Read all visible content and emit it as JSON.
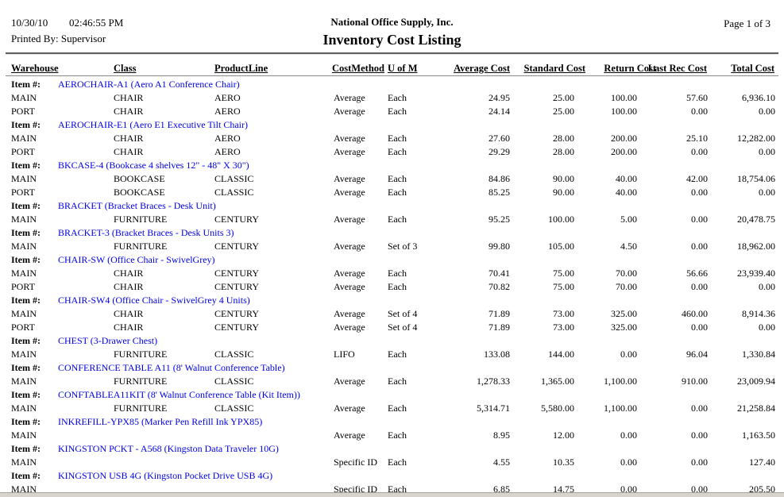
{
  "report": {
    "date": "10/30/10",
    "time": "02:46:55 PM",
    "printed_by": "Printed By: Supervisor",
    "company": "National Office Supply, Inc.",
    "title": "Inventory Cost Listing",
    "page_label": "Page 1 of 3"
  },
  "colors": {
    "item_link_blue": "#0000e6",
    "text": "#000000",
    "page_edge_gray": "#d8d4cc"
  },
  "table": {
    "item_label": "Item #:",
    "columns": {
      "warehouse": "Warehouse",
      "class": "Class",
      "product_line": "ProductLine",
      "cost_method": "CostMethod",
      "uom": "U of M",
      "average_cost": "Average Cost",
      "standard_cost": "Standard Cost",
      "return_cost": "Return Cost",
      "last_rec_cost": "Last Rec Cost",
      "total_cost": "Total Cost"
    },
    "items": [
      {
        "code": "AEROCHAIR-A1 (Aero A1 Conference Chair)",
        "rows": [
          {
            "warehouse": "MAIN",
            "class": "CHAIR",
            "product_line": "AERO",
            "cost_method": "Average",
            "uom": "Each",
            "average_cost": "24.95",
            "standard_cost": "25.00",
            "return_cost": "100.00",
            "last_rec_cost": "57.60",
            "total_cost": "6,936.10"
          },
          {
            "warehouse": "PORT",
            "class": "CHAIR",
            "product_line": "AERO",
            "cost_method": "Average",
            "uom": "Each",
            "average_cost": "24.14",
            "standard_cost": "25.00",
            "return_cost": "100.00",
            "last_rec_cost": "0.00",
            "total_cost": "0.00"
          }
        ]
      },
      {
        "code": "AEROCHAIR-E1 (Aero E1 Executive Tilt Chair)",
        "rows": [
          {
            "warehouse": "MAIN",
            "class": "CHAIR",
            "product_line": "AERO",
            "cost_method": "Average",
            "uom": "Each",
            "average_cost": "27.60",
            "standard_cost": "28.00",
            "return_cost": "200.00",
            "last_rec_cost": "25.10",
            "total_cost": "12,282.00"
          },
          {
            "warehouse": "PORT",
            "class": "CHAIR",
            "product_line": "AERO",
            "cost_method": "Average",
            "uom": "Each",
            "average_cost": "29.29",
            "standard_cost": "28.00",
            "return_cost": "200.00",
            "last_rec_cost": "0.00",
            "total_cost": "0.00"
          }
        ]
      },
      {
        "code": "BKCASE-4 (Bookcase 4 shelves 12\" - 48\" X 30\")",
        "rows": [
          {
            "warehouse": "MAIN",
            "class": "BOOKCASE",
            "product_line": "CLASSIC",
            "cost_method": "Average",
            "uom": "Each",
            "average_cost": "84.86",
            "standard_cost": "90.00",
            "return_cost": "40.00",
            "last_rec_cost": "42.00",
            "total_cost": "18,754.06"
          },
          {
            "warehouse": "PORT",
            "class": "BOOKCASE",
            "product_line": "CLASSIC",
            "cost_method": "Average",
            "uom": "Each",
            "average_cost": "85.25",
            "standard_cost": "90.00",
            "return_cost": "40.00",
            "last_rec_cost": "0.00",
            "total_cost": "0.00"
          }
        ]
      },
      {
        "code": "BRACKET (Bracket Braces - Desk Unit)",
        "rows": [
          {
            "warehouse": "MAIN",
            "class": "FURNITURE",
            "product_line": "CENTURY",
            "cost_method": "Average",
            "uom": "Each",
            "average_cost": "95.25",
            "standard_cost": "100.00",
            "return_cost": "5.00",
            "last_rec_cost": "0.00",
            "total_cost": "20,478.75"
          }
        ]
      },
      {
        "code": "BRACKET-3 (Bracket Braces - Desk Units 3)",
        "rows": [
          {
            "warehouse": "MAIN",
            "class": "FURNITURE",
            "product_line": "CENTURY",
            "cost_method": "Average",
            "uom": "Set of 3",
            "average_cost": "99.80",
            "standard_cost": "105.00",
            "return_cost": "4.50",
            "last_rec_cost": "0.00",
            "total_cost": "18,962.00"
          }
        ]
      },
      {
        "code": "CHAIR-SW (Office Chair - SwivelGrey)",
        "rows": [
          {
            "warehouse": "MAIN",
            "class": "CHAIR",
            "product_line": "CENTURY",
            "cost_method": "Average",
            "uom": "Each",
            "average_cost": "70.41",
            "standard_cost": "75.00",
            "return_cost": "70.00",
            "last_rec_cost": "56.66",
            "total_cost": "23,939.40"
          },
          {
            "warehouse": "PORT",
            "class": "CHAIR",
            "product_line": "CENTURY",
            "cost_method": "Average",
            "uom": "Each",
            "average_cost": "70.82",
            "standard_cost": "75.00",
            "return_cost": "70.00",
            "last_rec_cost": "0.00",
            "total_cost": "0.00"
          }
        ]
      },
      {
        "code": "CHAIR-SW4 (Office Chair - SwivelGrey 4 Units)",
        "rows": [
          {
            "warehouse": "MAIN",
            "class": "CHAIR",
            "product_line": "CENTURY",
            "cost_method": "Average",
            "uom": "Set of 4",
            "average_cost": "71.89",
            "standard_cost": "73.00",
            "return_cost": "325.00",
            "last_rec_cost": "460.00",
            "total_cost": "8,914.36"
          },
          {
            "warehouse": "PORT",
            "class": "CHAIR",
            "product_line": "CENTURY",
            "cost_method": "Average",
            "uom": "Set of 4",
            "average_cost": "71.89",
            "standard_cost": "73.00",
            "return_cost": "325.00",
            "last_rec_cost": "0.00",
            "total_cost": "0.00"
          }
        ]
      },
      {
        "code": "CHEST (3-Drawer Chest)",
        "rows": [
          {
            "warehouse": "MAIN",
            "class": "FURNITURE",
            "product_line": "CLASSIC",
            "cost_method": "LIFO",
            "uom": "Each",
            "average_cost": "133.08",
            "standard_cost": "144.00",
            "return_cost": "0.00",
            "last_rec_cost": "96.04",
            "total_cost": "1,330.84"
          }
        ]
      },
      {
        "code": "CONFERENCE TABLE A11 (8' Walnut Conference Table)",
        "rows": [
          {
            "warehouse": "MAIN",
            "class": "FURNITURE",
            "product_line": "CLASSIC",
            "cost_method": "Average",
            "uom": "Each",
            "average_cost": "1,278.33",
            "standard_cost": "1,365.00",
            "return_cost": "1,100.00",
            "last_rec_cost": "910.00",
            "total_cost": "23,009.94"
          }
        ]
      },
      {
        "code": "CONFTABLEA11KIT (8' Walnut Conference Table (Kit Item))",
        "rows": [
          {
            "warehouse": "MAIN",
            "class": "FURNITURE",
            "product_line": "CLASSIC",
            "cost_method": "Average",
            "uom": "Each",
            "average_cost": "5,314.71",
            "standard_cost": "5,580.00",
            "return_cost": "1,100.00",
            "last_rec_cost": "0.00",
            "total_cost": "21,258.84"
          }
        ]
      },
      {
        "code": "INKREFILL-YPX85 (Marker Pen Refill Ink YPX85)",
        "rows": [
          {
            "warehouse": "MAIN",
            "class": "",
            "product_line": "",
            "cost_method": "Average",
            "uom": "Each",
            "average_cost": "8.95",
            "standard_cost": "12.00",
            "return_cost": "0.00",
            "last_rec_cost": "0.00",
            "total_cost": "1,163.50"
          }
        ]
      },
      {
        "code": "KINGSTON PCKT - A568 (Kingston Data Traveler 10G)",
        "rows": [
          {
            "warehouse": "MAIN",
            "class": "",
            "product_line": "",
            "cost_method": "Specific ID",
            "uom": "Each",
            "average_cost": "4.55",
            "standard_cost": "10.35",
            "return_cost": "0.00",
            "last_rec_cost": "0.00",
            "total_cost": "127.40"
          }
        ]
      },
      {
        "code": "KINGSTON USB 4G (Kingston Pocket Drive USB 4G)",
        "rows": [
          {
            "warehouse": "MAIN",
            "class": "",
            "product_line": "",
            "cost_method": "Specific ID",
            "uom": "Each",
            "average_cost": "6.85",
            "standard_cost": "14.75",
            "return_cost": "0.00",
            "last_rec_cost": "0.00",
            "total_cost": "205.50"
          }
        ]
      }
    ]
  }
}
